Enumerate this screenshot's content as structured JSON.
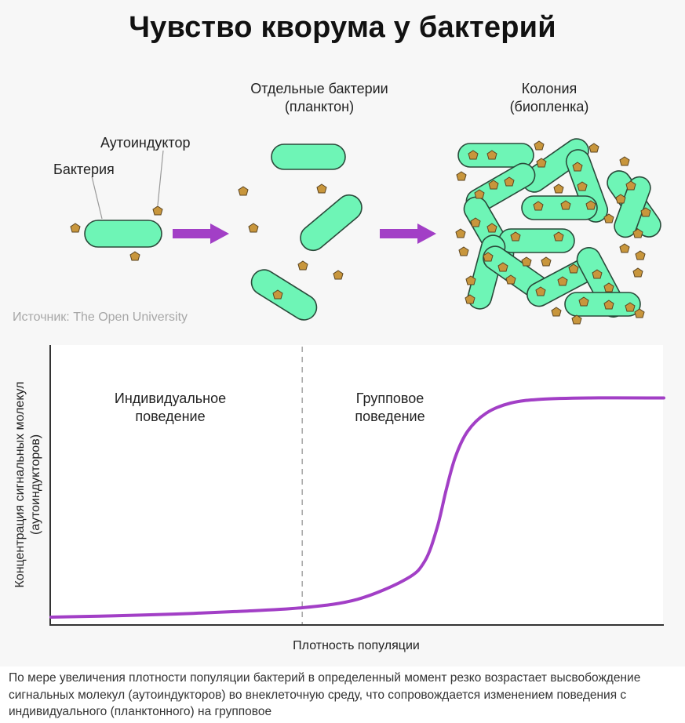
{
  "title": "Чувство кворума у бактерий",
  "labels": {
    "autoinducer": "Аутоиндуктор",
    "bacterium": "Бактерия",
    "plankton": "Отдельные бактерии\n(планктон)",
    "colony": "Колония\n(биопленка)"
  },
  "source": "Источник: The Open University",
  "colors": {
    "bacterium_fill": "#6ef5b6",
    "bacterium_stroke": "#2a4a3a",
    "molecule_fill": "#c8963c",
    "arrow": "#a23fc6",
    "curve": "#a23fc6"
  },
  "chart_data": {
    "type": "line",
    "xlabel": "Плотность популяции",
    "ylabel": "Концентрация сигнальных молекул\n(аутоиндукторов)",
    "regions": [
      "Индивидуальное\nповедение",
      "Групповое\nповедение"
    ],
    "series": [
      {
        "x": [
          0.0,
          0.1,
          0.2,
          0.3,
          0.41,
          0.5,
          0.58,
          0.61,
          0.63,
          0.645,
          0.66,
          0.68,
          0.71,
          0.75,
          0.8,
          0.88,
          1.0
        ],
        "values": [
          0.0,
          0.005,
          0.012,
          0.022,
          0.037,
          0.07,
          0.15,
          0.22,
          0.35,
          0.5,
          0.63,
          0.73,
          0.8,
          0.84,
          0.855,
          0.86,
          0.86
        ]
      }
    ],
    "threshold_x": 0.41,
    "grid": false
  },
  "caption": "По мере увеличения плотности популяции бактерий в определенный момент резко возрастает высвобождение сигнальных молекул (аутоиндукторов) во внеклеточную среду, что сопровождается изменением поведения с индивидуального (планктонного) на групповое"
}
